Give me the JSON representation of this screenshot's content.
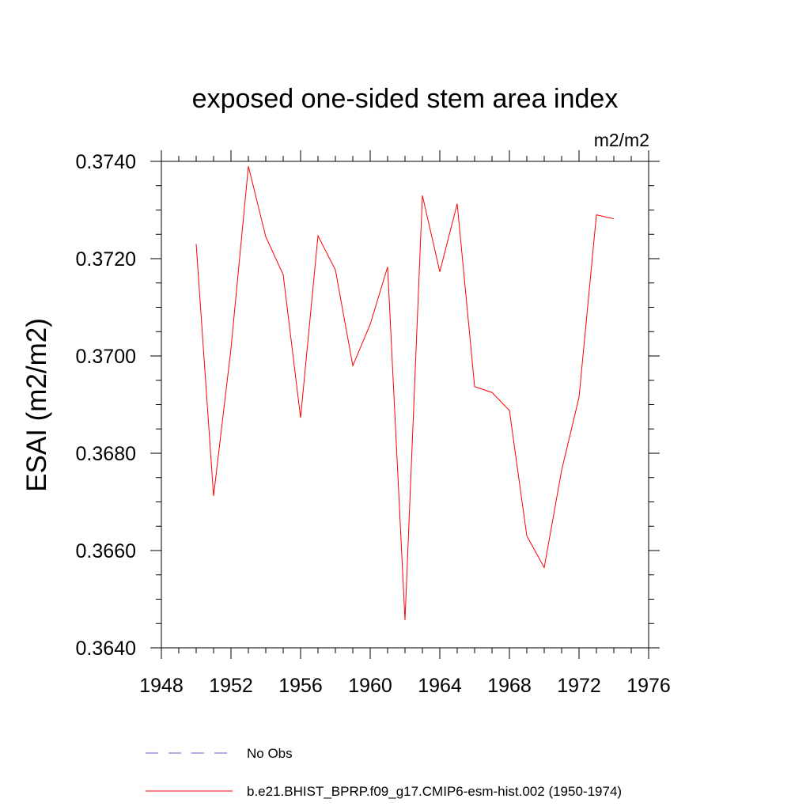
{
  "chart_data": {
    "type": "line",
    "title": "exposed one-sided stem area index",
    "units_label": "m2/m2",
    "xlabel": "",
    "ylabel": "ESAI  (m2/m2)",
    "xlim": [
      1948,
      1976
    ],
    "ylim": [
      0.364,
      0.374
    ],
    "x_major_ticks": [
      1948,
      1952,
      1956,
      1960,
      1964,
      1968,
      1972,
      1976
    ],
    "x_tick_labels": [
      "1948",
      "1952",
      "1956",
      "1960",
      "1964",
      "1968",
      "1972",
      "1976"
    ],
    "y_major_ticks": [
      0.364,
      0.366,
      0.368,
      0.37,
      0.372,
      0.374
    ],
    "y_tick_labels": [
      "0.3640",
      "0.3660",
      "0.3680",
      "0.3700",
      "0.3720",
      "0.3740"
    ],
    "grid": false,
    "legend_position": "bottom",
    "series": [
      {
        "name": "b.e21.BHIST_BPRP.f09_g17.CMIP6-esm-hist.002 (1950-1974)",
        "color": "#ff0000",
        "style": "solid",
        "x": [
          1950,
          1951,
          1952,
          1953,
          1954,
          1955,
          1956,
          1957,
          1958,
          1959,
          1960,
          1961,
          1962,
          1963,
          1964,
          1965,
          1966,
          1967,
          1968,
          1969,
          1970,
          1971,
          1972,
          1973,
          1974
        ],
        "values": [
          0.3723,
          0.36712,
          0.37015,
          0.3739,
          0.37245,
          0.37167,
          0.36873,
          0.37247,
          0.37177,
          0.3698,
          0.37065,
          0.37183,
          0.36457,
          0.3733,
          0.37173,
          0.37313,
          0.36937,
          0.36925,
          0.36888,
          0.3663,
          0.36565,
          0.36765,
          0.36915,
          0.3729,
          0.37282
        ]
      }
    ],
    "legend": [
      {
        "label": "No Obs",
        "color": "#6a5acd",
        "style": "dashed"
      },
      {
        "label": "b.e21.BHIST_BPRP.f09_g17.CMIP6-esm-hist.002 (1950-1974)",
        "color": "#ff0000",
        "style": "solid"
      }
    ]
  }
}
